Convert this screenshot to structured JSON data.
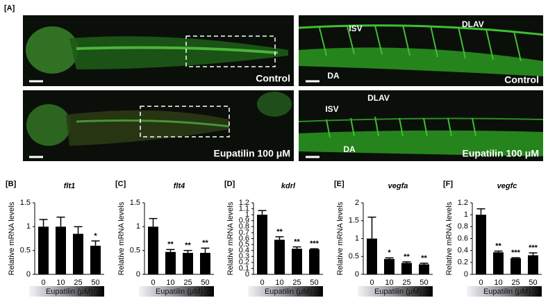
{
  "panel_a": {
    "label": "[A]",
    "images": [
      {
        "condition": "Control"
      },
      {
        "condition": "Control",
        "annotations": [
          "ISV",
          "DLAV",
          "DA"
        ]
      },
      {
        "condition": "Eupatilin 100 μM"
      },
      {
        "condition": "Eupatilin 100 μM",
        "annotations": [
          "ISV",
          "DLAV",
          "DA"
        ]
      }
    ]
  },
  "chart_data": [
    {
      "type": "bar",
      "panel": "[B]",
      "title": "flt1",
      "y_label": "Relative mRNA levels",
      "x_label": "Eupatilin (μM)",
      "categories": [
        "0",
        "10",
        "25",
        "50"
      ],
      "values": [
        1.0,
        1.0,
        0.85,
        0.6
      ],
      "errors": [
        0.15,
        0.2,
        0.15,
        0.1
      ],
      "significance": [
        null,
        null,
        null,
        "*"
      ],
      "color": "#000000",
      "ylim": [
        0,
        1.5
      ],
      "yticks": [
        0,
        0.5,
        1,
        1.5
      ]
    },
    {
      "type": "bar",
      "panel": "[C]",
      "title": "flt4",
      "y_label": "Relative mRNA levels",
      "x_label": "Eupatilin (μM)",
      "categories": [
        "0",
        "10",
        "25",
        "50"
      ],
      "values": [
        1.0,
        0.47,
        0.45,
        0.45
      ],
      "errors": [
        0.17,
        0.05,
        0.05,
        0.1
      ],
      "significance": [
        null,
        "**",
        "**",
        "**"
      ],
      "color": "#000000",
      "ylim": [
        0,
        1.5
      ],
      "yticks": [
        0,
        0.5,
        1,
        1.5
      ]
    },
    {
      "type": "bar",
      "panel": "[D]",
      "title": "kdrl",
      "y_label": "Relative mRNA levels",
      "x_label": "Eupatilin (μM)",
      "categories": [
        "0",
        "10",
        "25",
        "50"
      ],
      "values": [
        1.0,
        0.58,
        0.43,
        0.42
      ],
      "errors": [
        0.07,
        0.05,
        0.03,
        0.01
      ],
      "significance": [
        null,
        "**",
        "**",
        "***"
      ],
      "color": "#000000",
      "ylim": [
        0,
        1.2
      ],
      "yticks": [
        0,
        0.1,
        0.2,
        0.3,
        0.4,
        0.5,
        0.6,
        0.7,
        0.8,
        0.9,
        1,
        1.1,
        1.2
      ]
    },
    {
      "type": "bar",
      "panel": "[E]",
      "title": "vegfa",
      "y_label": "Relative mRNA levels",
      "x_label": "Eupatilin (μM)",
      "categories": [
        "0",
        "10",
        "25",
        "50"
      ],
      "values": [
        1.0,
        0.43,
        0.32,
        0.28
      ],
      "errors": [
        0.6,
        0.03,
        0.03,
        0.03
      ],
      "significance": [
        null,
        "*",
        "**",
        "**"
      ],
      "color": "#000000",
      "ylim": [
        0,
        2
      ],
      "yticks": [
        0,
        0.5,
        1,
        1.5,
        2
      ]
    },
    {
      "type": "bar",
      "panel": "[F]",
      "title": "vegfc",
      "y_label": "Relative mRNA levels",
      "x_label": "Eupatilin (μM)",
      "categories": [
        "0",
        "10",
        "25",
        "50"
      ],
      "values": [
        1.0,
        0.37,
        0.27,
        0.32
      ],
      "errors": [
        0.1,
        0.02,
        0.01,
        0.04
      ],
      "significance": [
        null,
        "**",
        "***",
        "***"
      ],
      "color": "#000000",
      "ylim": [
        0,
        1.2
      ],
      "yticks": [
        0,
        0.2,
        0.4,
        0.6,
        0.8,
        1,
        1.2
      ]
    }
  ]
}
